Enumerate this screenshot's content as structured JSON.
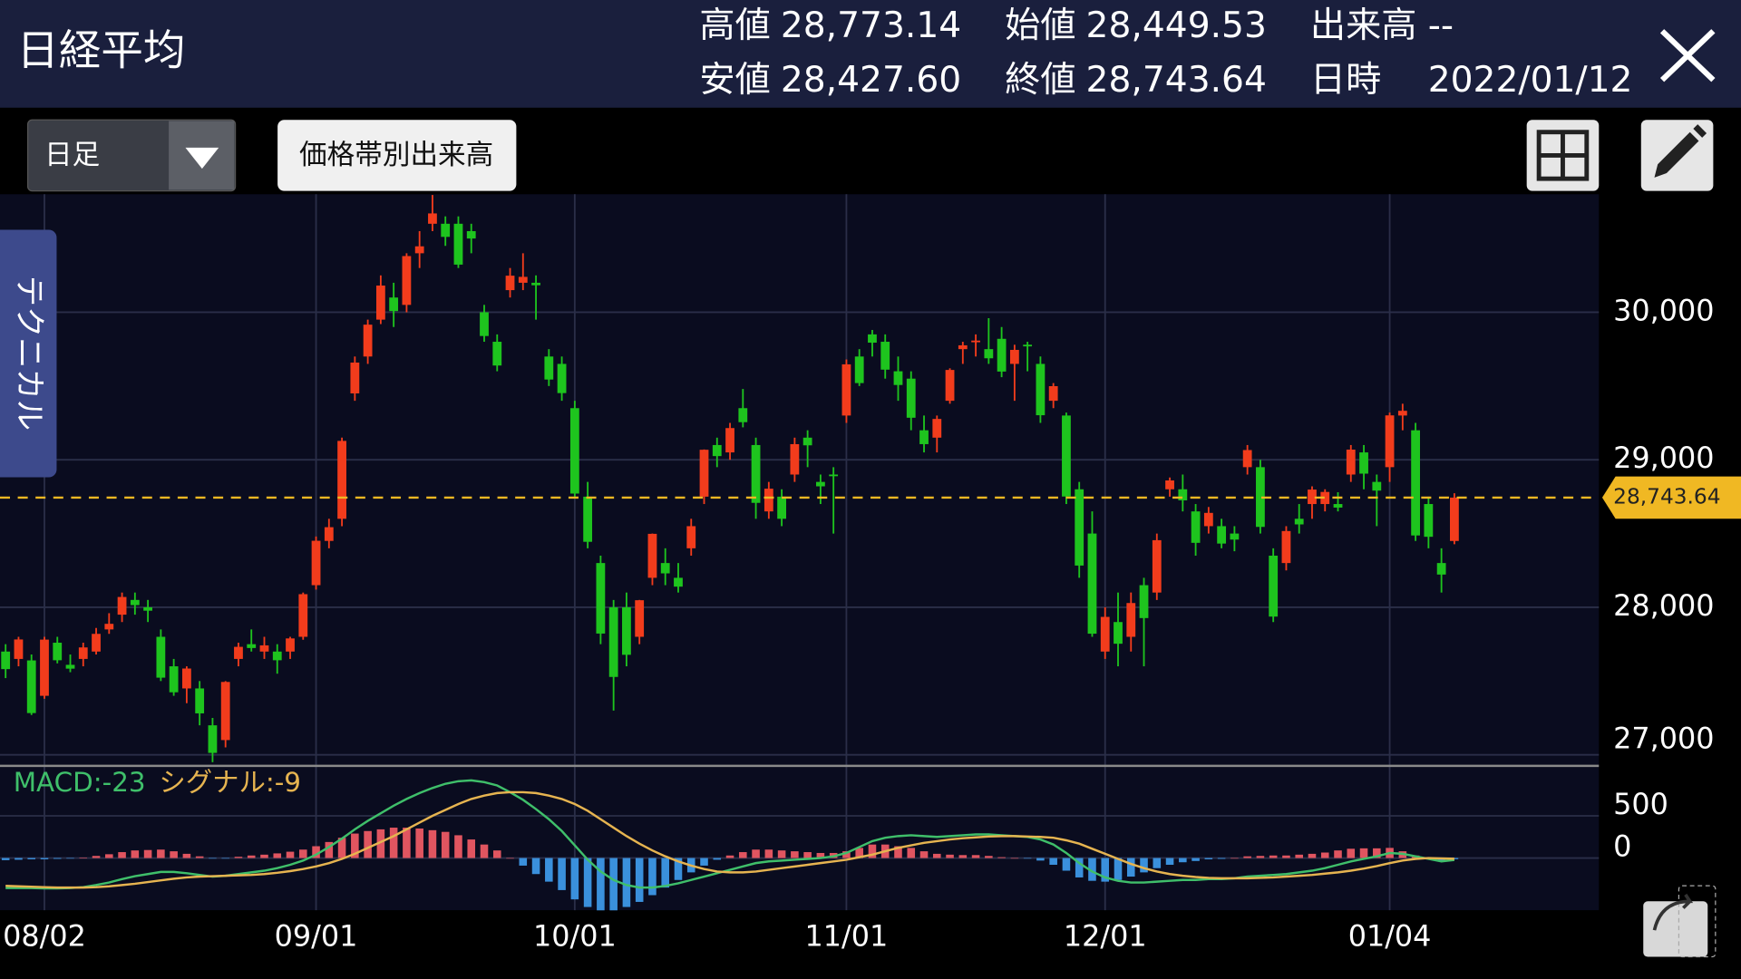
{
  "header": {
    "title": "日経平均",
    "stats": [
      {
        "label": "高値",
        "value": "28,773.14"
      },
      {
        "label": "始値",
        "value": "28,449.53"
      },
      {
        "label": "出来高",
        "value": "--"
      },
      {
        "label": "安値",
        "value": "28,427.60"
      },
      {
        "label": "終値",
        "value": "28,743.64"
      },
      {
        "label": "日時",
        "value": "2022/01/12"
      }
    ]
  },
  "controls": {
    "period": "日足",
    "volume_profile": "価格帯別出来高",
    "technical_tab": "テクニカル"
  },
  "chart_data": [
    {
      "type": "candlestick",
      "categories": [
        null,
        null,
        null,
        "08/02",
        null,
        null,
        null,
        null,
        null,
        null,
        null,
        null,
        null,
        null,
        null,
        null,
        null,
        null,
        null,
        null,
        null,
        null,
        null,
        null,
        "09/01",
        null,
        null,
        null,
        null,
        null,
        null,
        null,
        null,
        null,
        null,
        null,
        null,
        null,
        null,
        null,
        null,
        null,
        null,
        null,
        "10/01",
        null,
        null,
        null,
        null,
        null,
        null,
        null,
        null,
        null,
        null,
        null,
        null,
        null,
        null,
        null,
        null,
        null,
        null,
        null,
        null,
        "11/01",
        null,
        null,
        null,
        null,
        null,
        null,
        null,
        null,
        null,
        null,
        null,
        null,
        null,
        null,
        null,
        null,
        null,
        null,
        null,
        "12/01",
        null,
        null,
        null,
        null,
        null,
        null,
        null,
        null,
        null,
        null,
        null,
        null,
        null,
        null,
        null,
        null,
        null,
        null,
        null,
        null,
        null,
        "01/04",
        null,
        null,
        null,
        null,
        null
      ],
      "open": [
        27700,
        27650,
        27640,
        27400,
        27760,
        27610,
        27650,
        27700,
        27850,
        27950,
        28050,
        28000,
        27800,
        27600,
        27450,
        27450,
        27200,
        27100,
        27650,
        27750,
        27700,
        27700,
        27700,
        27800,
        28150,
        28450,
        28600,
        29450,
        29700,
        29950,
        30100,
        30050,
        30400,
        30600,
        30600,
        30600,
        30550,
        30000,
        29800,
        30150,
        30200,
        30200,
        29700,
        29650,
        29350,
        28750,
        28300,
        28000,
        28000,
        27800,
        28200,
        28300,
        28200,
        28400,
        28750,
        29100,
        29050,
        29350,
        29100,
        28650,
        28750,
        28900,
        29150,
        28850,
        28900,
        29300,
        29700,
        29850,
        29800,
        29600,
        29550,
        29200,
        29150,
        29400,
        29750,
        29800,
        29750,
        29820,
        29650,
        29780,
        29650,
        29400,
        29300,
        28800,
        28500,
        27700,
        27900,
        27800,
        28150,
        28100,
        28800,
        28800,
        28650,
        28550,
        28550,
        28500,
        28950,
        28950,
        28350,
        28300,
        28600,
        28700,
        28700,
        28700,
        28900,
        29050,
        28850,
        28950,
        29300,
        29200,
        28700,
        28300,
        28449.53
      ],
      "high": [
        27750,
        27800,
        27680,
        27800,
        27800,
        27680,
        27760,
        27860,
        27960,
        28100,
        28100,
        28050,
        27850,
        27650,
        27600,
        27500,
        27250,
        27500,
        27760,
        27850,
        27800,
        27750,
        27800,
        28100,
        28480,
        28600,
        29150,
        29700,
        29950,
        30250,
        30200,
        30400,
        30550,
        30795,
        30650,
        30650,
        30600,
        30050,
        29850,
        30300,
        30400,
        30250,
        29750,
        29700,
        29400,
        28850,
        28350,
        28050,
        28100,
        28050,
        28500,
        28400,
        28300,
        28600,
        29070,
        29150,
        29250,
        29480,
        29150,
        28850,
        28800,
        29150,
        29200,
        28900,
        28950,
        29680,
        29750,
        29880,
        29850,
        29700,
        29600,
        29300,
        29300,
        29620,
        29800,
        29850,
        29960,
        29900,
        29780,
        29800,
        29700,
        29520,
        29320,
        28850,
        28650,
        28000,
        28100,
        28100,
        28200,
        28500,
        28880,
        28900,
        28700,
        28680,
        28600,
        28550,
        29100,
        29000,
        28400,
        28550,
        28700,
        28820,
        28800,
        28780,
        29100,
        29100,
        28900,
        29320,
        29380,
        29250,
        28750,
        28400,
        28773.14
      ],
      "low": [
        27520,
        27600,
        27270,
        27380,
        27620,
        27560,
        27600,
        27680,
        27820,
        27900,
        27950,
        27900,
        27500,
        27400,
        27350,
        27200,
        26950,
        27050,
        27600,
        27700,
        27650,
        27550,
        27650,
        27780,
        28120,
        28400,
        28550,
        29400,
        29650,
        29920,
        29900,
        30000,
        30300,
        30550,
        30450,
        30300,
        30400,
        29800,
        29600,
        30100,
        30150,
        29950,
        29500,
        29400,
        28750,
        28400,
        27750,
        27300,
        27600,
        27750,
        28150,
        28150,
        28100,
        28350,
        28700,
        28950,
        29000,
        29220,
        28600,
        28600,
        28550,
        28850,
        28950,
        28700,
        28500,
        29250,
        29500,
        29700,
        29550,
        29400,
        29200,
        29050,
        29050,
        29380,
        29650,
        29700,
        29650,
        29560,
        29400,
        29600,
        29250,
        29350,
        28700,
        28200,
        27800,
        27650,
        27600,
        27700,
        27600,
        28050,
        28750,
        28650,
        28350,
        28500,
        28400,
        28380,
        28900,
        28500,
        27900,
        28250,
        28500,
        28600,
        28650,
        28650,
        28850,
        28800,
        28550,
        28850,
        29200,
        28450,
        28400,
        28100,
        28427.6
      ],
      "close": [
        27581,
        27782,
        27283,
        27781,
        27641,
        27584,
        27728,
        27820,
        27888,
        28070,
        28015,
        27977,
        27523,
        27424,
        27585,
        27281,
        27013,
        27494,
        27732,
        27724,
        27742,
        27641,
        27789,
        28089,
        28451,
        28543,
        29128,
        29659,
        29916,
        30181,
        30008,
        30381,
        30447,
        30670,
        30511,
        30323,
        30500,
        29839,
        29639,
        30248,
        30240,
        30183,
        29544,
        29452,
        28771,
        28444,
        27822,
        27528,
        27678,
        28048,
        28498,
        28230,
        28140,
        28550,
        29068,
        29025,
        29215,
        29255,
        28708,
        28804,
        28600,
        29106,
        29098,
        28820,
        28892,
        29647,
        29520,
        29794,
        29611,
        29507,
        29285,
        29106,
        29277,
        29609,
        29776,
        29808,
        29688,
        29598,
        29745,
        29774,
        29302,
        29499,
        28751,
        28283,
        27821,
        27935,
        27753,
        28029,
        27927,
        28455,
        28860,
        28725,
        28437,
        28640,
        28432,
        28459,
        29066,
        28545,
        27937,
        28517,
        28562,
        28798,
        28782,
        28676,
        29069,
        28906,
        28791,
        29301,
        29332,
        28487,
        28478,
        28222,
        28743.64
      ],
      "up_color": "#f23c1c",
      "down_color": "#1ec41e",
      "ylim": [
        26925,
        30800
      ],
      "yticks": [
        {
          "value": 30000,
          "label": "30,000"
        },
        {
          "value": 29000,
          "label": "29,000"
        },
        {
          "value": 28000,
          "label": "28,000"
        },
        {
          "value": 27000,
          "label": "27,000"
        }
      ],
      "grid": true,
      "price_line": {
        "value": 28743.64,
        "label": "28,743.64",
        "color": "#f0b823"
      }
    },
    {
      "type": "macd",
      "series": [
        {
          "label": "MACD:-23",
          "color": "#3fbf6a",
          "values": [
            -355,
            -355,
            -355,
            -360,
            -360,
            -355,
            -345,
            -320,
            -290,
            -250,
            -215,
            -190,
            -165,
            -165,
            -180,
            -200,
            -220,
            -210,
            -190,
            -170,
            -150,
            -120,
            -80,
            -30,
            40,
            130,
            230,
            340,
            440,
            530,
            620,
            700,
            770,
            830,
            880,
            910,
            920,
            900,
            860,
            780,
            690,
            580,
            460,
            320,
            150,
            -20,
            -160,
            -260,
            -320,
            -350,
            -350,
            -330,
            -300,
            -260,
            -220,
            -180,
            -140,
            -100,
            -60,
            -40,
            -30,
            -20,
            -10,
            0,
            20,
            60,
            130,
            200,
            240,
            260,
            270,
            260,
            250,
            260,
            270,
            280,
            280,
            270,
            260,
            250,
            220,
            160,
            60,
            -60,
            -160,
            -230,
            -270,
            -290,
            -290,
            -280,
            -270,
            -260,
            -260,
            -250,
            -250,
            -240,
            -220,
            -210,
            -200,
            -190,
            -170,
            -150,
            -120,
            -80,
            -40,
            -10,
            20,
            60,
            50,
            20,
            -10,
            -40,
            -23
          ]
        },
        {
          "label": "シグナル:-9",
          "color": "#e6b450",
          "values": [
            -330,
            -335,
            -340,
            -345,
            -350,
            -350,
            -350,
            -345,
            -335,
            -320,
            -305,
            -285,
            -265,
            -245,
            -230,
            -220,
            -215,
            -210,
            -205,
            -200,
            -190,
            -175,
            -155,
            -130,
            -100,
            -60,
            -10,
            50,
            120,
            190,
            260,
            340,
            420,
            500,
            570,
            640,
            700,
            740,
            770,
            780,
            780,
            770,
            740,
            700,
            640,
            560,
            460,
            360,
            260,
            170,
            90,
            20,
            -40,
            -90,
            -130,
            -160,
            -170,
            -170,
            -160,
            -140,
            -120,
            -100,
            -80,
            -60,
            -40,
            -20,
            10,
            40,
            80,
            120,
            150,
            180,
            200,
            220,
            235,
            245,
            255,
            260,
            260,
            255,
            250,
            240,
            210,
            170,
            110,
            50,
            -10,
            -70,
            -120,
            -160,
            -190,
            -210,
            -225,
            -235,
            -240,
            -240,
            -240,
            -235,
            -230,
            -220,
            -210,
            -200,
            -185,
            -170,
            -150,
            -125,
            -95,
            -60,
            -30,
            -10,
            0,
            -5,
            -9
          ]
        }
      ],
      "histogram": {
        "values": [
          -25,
          -20,
          -15,
          -15,
          -10,
          -5,
          5,
          25,
          45,
          70,
          90,
          95,
          100,
          80,
          50,
          20,
          -5,
          -5,
          15,
          30,
          40,
          55,
          75,
          100,
          140,
          190,
          240,
          290,
          320,
          340,
          360,
          360,
          350,
          330,
          310,
          270,
          220,
          160,
          90,
          0,
          -90,
          -190,
          -280,
          -380,
          -490,
          -580,
          -620,
          -620,
          -580,
          -520,
          -440,
          -350,
          -260,
          -170,
          -90,
          -20,
          30,
          70,
          100,
          100,
          90,
          80,
          70,
          60,
          60,
          80,
          120,
          160,
          160,
          140,
          120,
          80,
          50,
          40,
          35,
          35,
          25,
          10,
          0,
          -5,
          -30,
          -80,
          -150,
          -230,
          -270,
          -280,
          -260,
          -220,
          -170,
          -120,
          -80,
          -50,
          -35,
          -15,
          -10,
          0,
          20,
          25,
          30,
          30,
          40,
          50,
          65,
          90,
          110,
          115,
          115,
          120,
          80,
          30,
          -10,
          -35,
          -14
        ],
        "up_color": "#e05560",
        "down_color": "#3a90dc"
      },
      "ylim": [
        -618,
        1092
      ],
      "yticks": [
        0,
        500
      ]
    }
  ]
}
